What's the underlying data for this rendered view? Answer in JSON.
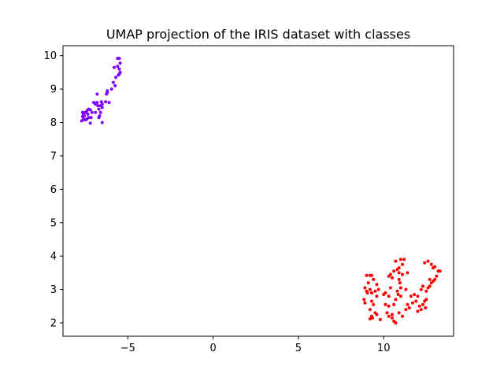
{
  "chart_data": {
    "type": "scatter",
    "title": "UMAP projection of the IRIS dataset with classes",
    "xlabel": "",
    "ylabel": "",
    "xlim": [
      -8.8,
      14.1
    ],
    "ylim": [
      1.6,
      10.3
    ],
    "xticks": [
      -5,
      0,
      5,
      10
    ],
    "xtick_labels": [
      "−5",
      "0",
      "5",
      "10"
    ],
    "yticks": [
      2,
      3,
      4,
      5,
      6,
      7,
      8,
      9,
      10
    ],
    "ytick_labels": [
      "2",
      "3",
      "4",
      "5",
      "6",
      "7",
      "8",
      "9",
      "10"
    ],
    "grid": false,
    "legend": "none",
    "series": [
      {
        "color": "#7f00ff",
        "points": [
          [
            -5.5,
            9.92
          ],
          [
            -5.6,
            9.92
          ],
          [
            -5.45,
            9.78
          ],
          [
            -5.6,
            9.68
          ],
          [
            -5.5,
            9.6
          ],
          [
            -5.45,
            9.5
          ],
          [
            -5.55,
            9.42
          ],
          [
            -5.7,
            9.35
          ],
          [
            -5.8,
            9.65
          ],
          [
            -5.85,
            9.2
          ],
          [
            -5.75,
            9.1
          ],
          [
            -6.2,
            8.95
          ],
          [
            -6.25,
            8.85
          ],
          [
            -6.1,
            8.6
          ],
          [
            -6.3,
            8.62
          ],
          [
            -6.5,
            8.55
          ],
          [
            -6.5,
            8.45
          ],
          [
            -6.6,
            8.5
          ],
          [
            -6.7,
            8.4
          ],
          [
            -6.8,
            8.6
          ],
          [
            -6.9,
            8.55
          ],
          [
            -7.0,
            8.6
          ],
          [
            -6.8,
            8.85
          ],
          [
            -6.6,
            8.3
          ],
          [
            -6.5,
            8.0
          ],
          [
            -6.65,
            8.2
          ],
          [
            -6.7,
            8.15
          ],
          [
            -6.9,
            8.3
          ],
          [
            -7.1,
            8.3
          ],
          [
            -7.15,
            8.15
          ],
          [
            -7.2,
            8.38
          ],
          [
            -7.3,
            8.4
          ],
          [
            -7.35,
            8.25
          ],
          [
            -7.4,
            8.35
          ],
          [
            -7.5,
            8.3
          ],
          [
            -7.55,
            8.2
          ],
          [
            -7.6,
            8.25
          ],
          [
            -7.65,
            8.3
          ],
          [
            -7.5,
            8.08
          ],
          [
            -7.6,
            8.1
          ],
          [
            -7.7,
            8.05
          ],
          [
            -7.4,
            8.1
          ],
          [
            -7.3,
            8.15
          ],
          [
            -7.2,
            7.98
          ],
          [
            -7.65,
            8.18
          ],
          [
            -6.75,
            8.5
          ],
          [
            -6.55,
            8.62
          ],
          [
            -5.95,
            9.0
          ],
          [
            -5.5,
            9.45
          ],
          [
            -6.2,
            8.9
          ]
        ]
      },
      {
        "color": "#ff0000",
        "points": [
          [
            9.0,
            3.42
          ],
          [
            9.2,
            3.42
          ],
          [
            9.3,
            3.42
          ],
          [
            9.4,
            3.3
          ],
          [
            9.6,
            3.15
          ],
          [
            9.1,
            3.2
          ],
          [
            8.9,
            3.05
          ],
          [
            9.0,
            2.95
          ],
          [
            9.2,
            3.0
          ],
          [
            9.3,
            2.9
          ],
          [
            9.5,
            2.95
          ],
          [
            8.85,
            2.7
          ],
          [
            8.9,
            2.6
          ],
          [
            9.3,
            2.65
          ],
          [
            9.4,
            2.55
          ],
          [
            9.2,
            2.4
          ],
          [
            9.5,
            2.3
          ],
          [
            9.3,
            2.2
          ],
          [
            9.2,
            2.12
          ],
          [
            9.35,
            2.15
          ],
          [
            9.6,
            2.25
          ],
          [
            10.0,
            2.85
          ],
          [
            10.1,
            2.9
          ],
          [
            10.3,
            2.8
          ],
          [
            10.4,
            3.05
          ],
          [
            10.3,
            3.4
          ],
          [
            10.4,
            3.45
          ],
          [
            10.6,
            3.55
          ],
          [
            10.8,
            3.6
          ],
          [
            10.7,
            3.85
          ],
          [
            11.0,
            3.9
          ],
          [
            11.2,
            3.9
          ],
          [
            11.1,
            3.75
          ],
          [
            10.9,
            3.5
          ],
          [
            11.1,
            3.45
          ],
          [
            10.9,
            3.3
          ],
          [
            10.95,
            3.2
          ],
          [
            11.0,
            3.05
          ],
          [
            10.8,
            2.95
          ],
          [
            10.85,
            2.85
          ],
          [
            10.7,
            2.7
          ],
          [
            10.6,
            2.55
          ],
          [
            10.3,
            2.5
          ],
          [
            10.1,
            2.55
          ],
          [
            10.2,
            2.3
          ],
          [
            10.3,
            2.2
          ],
          [
            10.5,
            2.15
          ],
          [
            10.6,
            2.05
          ],
          [
            10.7,
            2.0
          ],
          [
            10.5,
            2.25
          ],
          [
            10.9,
            2.3
          ],
          [
            11.1,
            2.2
          ],
          [
            11.4,
            2.55
          ],
          [
            11.5,
            2.45
          ],
          [
            11.7,
            2.6
          ],
          [
            11.9,
            2.65
          ],
          [
            11.6,
            2.8
          ],
          [
            11.8,
            2.85
          ],
          [
            12.0,
            2.8
          ],
          [
            12.1,
            2.5
          ],
          [
            12.2,
            2.4
          ],
          [
            12.3,
            2.55
          ],
          [
            12.4,
            2.65
          ],
          [
            12.5,
            2.7
          ],
          [
            12.45,
            2.45
          ],
          [
            12.5,
            2.95
          ],
          [
            12.6,
            3.05
          ],
          [
            12.7,
            3.1
          ],
          [
            12.8,
            3.2
          ],
          [
            12.9,
            3.25
          ],
          [
            13.0,
            3.3
          ],
          [
            13.1,
            3.4
          ],
          [
            12.4,
            3.8
          ],
          [
            12.6,
            3.85
          ],
          [
            12.8,
            3.75
          ],
          [
            12.9,
            3.65
          ],
          [
            13.0,
            3.68
          ],
          [
            13.2,
            3.55
          ],
          [
            13.3,
            3.55
          ],
          [
            12.2,
            3.0
          ],
          [
            12.3,
            3.1
          ],
          [
            11.3,
            2.4
          ],
          [
            11.3,
            3.0
          ],
          [
            10.9,
            3.65
          ],
          [
            9.7,
            3.0
          ],
          [
            9.6,
            2.8
          ],
          [
            11.0,
            2.8
          ],
          [
            12.7,
            3.3
          ],
          [
            9.8,
            2.1
          ],
          [
            10.5,
            3.35
          ],
          [
            11.4,
            3.5
          ],
          [
            12.0,
            2.35
          ],
          [
            9.05,
            2.9
          ]
        ]
      }
    ]
  }
}
